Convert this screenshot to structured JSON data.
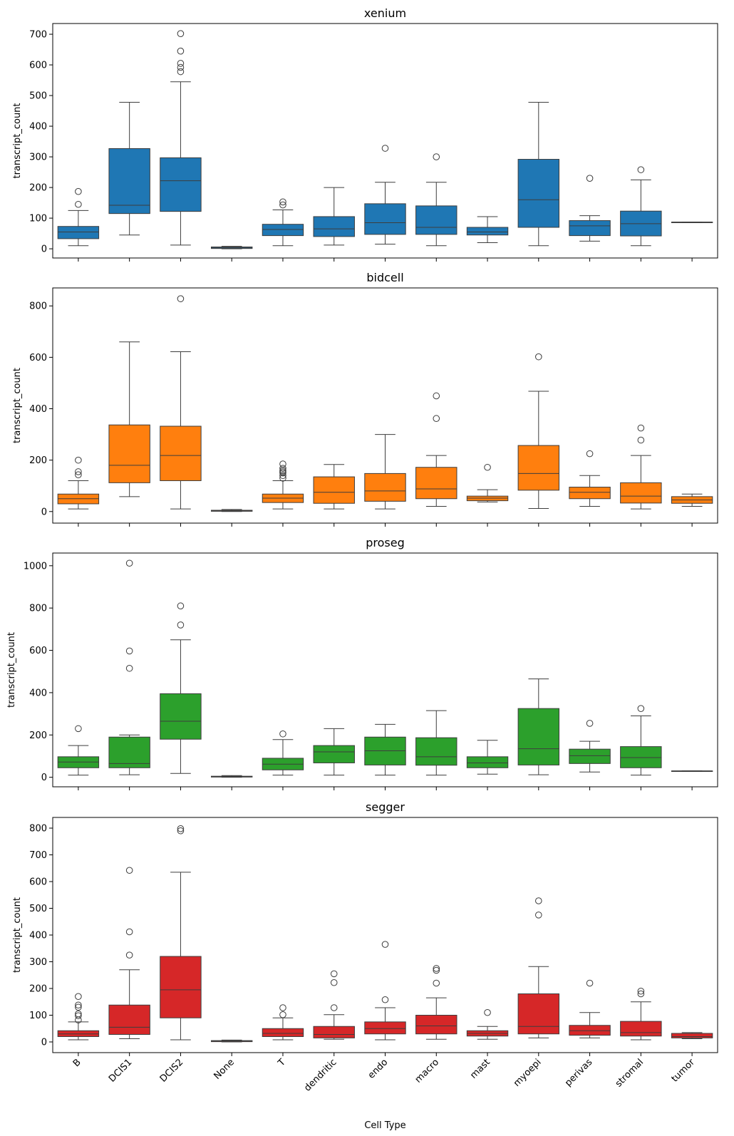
{
  "chart_data": {
    "type": "box",
    "xlabel": "Cell Type",
    "ylabel": "transcript_count",
    "categories": [
      "B",
      "DCIS1",
      "DCIS2",
      "None",
      "T",
      "dendritic",
      "endo",
      "macro",
      "mast",
      "myoepi",
      "perivas",
      "stromal",
      "tumor"
    ],
    "panels": [
      {
        "title": "xenium",
        "color": "#1f77b4",
        "ylim": [
          -30,
          735
        ],
        "yticks": [
          0,
          100,
          200,
          300,
          400,
          500,
          600,
          700
        ],
        "boxes": [
          {
            "min": 10,
            "q1": 33,
            "median": 55,
            "q3": 73,
            "max": 125,
            "outliers": [
              145,
              187
            ]
          },
          {
            "min": 45,
            "q1": 115,
            "median": 142,
            "q3": 327,
            "max": 478,
            "outliers": []
          },
          {
            "min": 12,
            "q1": 122,
            "median": 222,
            "q3": 297,
            "max": 545,
            "outliers": [
              578,
              592,
              605,
              645,
              702
            ]
          },
          {
            "min": 0,
            "q1": 1,
            "median": 3,
            "q3": 6,
            "max": 8,
            "outliers": []
          },
          {
            "min": 10,
            "q1": 43,
            "median": 63,
            "q3": 80,
            "max": 127,
            "outliers": [
              143,
              153
            ]
          },
          {
            "min": 12,
            "q1": 40,
            "median": 65,
            "q3": 105,
            "max": 200,
            "outliers": []
          },
          {
            "min": 15,
            "q1": 47,
            "median": 85,
            "q3": 147,
            "max": 217,
            "outliers": [
              328
            ]
          },
          {
            "min": 10,
            "q1": 47,
            "median": 70,
            "q3": 140,
            "max": 217,
            "outliers": [
              300
            ]
          },
          {
            "min": 20,
            "q1": 45,
            "median": 55,
            "q3": 70,
            "max": 105,
            "outliers": []
          },
          {
            "min": 10,
            "q1": 70,
            "median": 160,
            "q3": 292,
            "max": 478,
            "outliers": []
          },
          {
            "min": 25,
            "q1": 43,
            "median": 75,
            "q3": 92,
            "max": 108,
            "outliers": [
              230
            ]
          },
          {
            "min": 10,
            "q1": 42,
            "median": 82,
            "q3": 123,
            "max": 225,
            "outliers": [
              258
            ]
          },
          {
            "min": 87,
            "q1": 87,
            "median": 87,
            "q3": 87,
            "max": 87,
            "outliers": []
          }
        ]
      },
      {
        "title": "bidcell",
        "color": "#ff7f0e",
        "ylim": [
          -45,
          870
        ],
        "yticks": [
          0,
          200,
          400,
          600,
          800
        ],
        "boxes": [
          {
            "min": 10,
            "q1": 30,
            "median": 50,
            "q3": 68,
            "max": 120,
            "outliers": [
              143,
              155,
              200
            ]
          },
          {
            "min": 58,
            "q1": 112,
            "median": 180,
            "q3": 337,
            "max": 660,
            "outliers": []
          },
          {
            "min": 10,
            "q1": 120,
            "median": 218,
            "q3": 332,
            "max": 622,
            "outliers": [
              828
            ]
          },
          {
            "min": 0,
            "q1": 1,
            "median": 3,
            "q3": 5,
            "max": 8,
            "outliers": []
          },
          {
            "min": 10,
            "q1": 35,
            "median": 52,
            "q3": 68,
            "max": 120,
            "outliers": [
              130,
              140,
              150,
              155,
              160,
              168,
              185
            ]
          },
          {
            "min": 10,
            "q1": 32,
            "median": 75,
            "q3": 135,
            "max": 183,
            "outliers": []
          },
          {
            "min": 10,
            "q1": 40,
            "median": 80,
            "q3": 148,
            "max": 300,
            "outliers": []
          },
          {
            "min": 20,
            "q1": 50,
            "median": 88,
            "q3": 172,
            "max": 218,
            "outliers": [
              362,
              450
            ]
          },
          {
            "min": 37,
            "q1": 42,
            "median": 52,
            "q3": 60,
            "max": 85,
            "outliers": [
              172
            ]
          },
          {
            "min": 12,
            "q1": 83,
            "median": 148,
            "q3": 257,
            "max": 468,
            "outliers": [
              602
            ]
          },
          {
            "min": 20,
            "q1": 50,
            "median": 75,
            "q3": 95,
            "max": 140,
            "outliers": [
              225
            ]
          },
          {
            "min": 10,
            "q1": 33,
            "median": 60,
            "q3": 112,
            "max": 218,
            "outliers": [
              278,
              325
            ]
          },
          {
            "min": 20,
            "q1": 32,
            "median": 45,
            "q3": 58,
            "max": 68,
            "outliers": []
          }
        ]
      },
      {
        "title": "proseg",
        "color": "#2ca02c",
        "ylim": [
          -45,
          1060
        ],
        "yticks": [
          0,
          200,
          400,
          600,
          800,
          1000
        ],
        "boxes": [
          {
            "min": 10,
            "q1": 45,
            "median": 72,
            "q3": 97,
            "max": 150,
            "outliers": [
              230
            ]
          },
          {
            "min": 12,
            "q1": 45,
            "median": 65,
            "q3": 190,
            "max": 200,
            "outliers": [
              515,
              597,
              1012
            ]
          },
          {
            "min": 18,
            "q1": 180,
            "median": 265,
            "q3": 395,
            "max": 650,
            "outliers": [
              720,
              810
            ]
          },
          {
            "min": 0,
            "q1": 1,
            "median": 3,
            "q3": 5,
            "max": 8,
            "outliers": []
          },
          {
            "min": 10,
            "q1": 35,
            "median": 62,
            "q3": 90,
            "max": 178,
            "outliers": [
              205
            ]
          },
          {
            "min": 10,
            "q1": 68,
            "median": 120,
            "q3": 150,
            "max": 230,
            "outliers": []
          },
          {
            "min": 10,
            "q1": 58,
            "median": 125,
            "q3": 190,
            "max": 250,
            "outliers": []
          },
          {
            "min": 10,
            "q1": 57,
            "median": 97,
            "q3": 187,
            "max": 315,
            "outliers": []
          },
          {
            "min": 15,
            "q1": 45,
            "median": 68,
            "q3": 97,
            "max": 175,
            "outliers": []
          },
          {
            "min": 12,
            "q1": 58,
            "median": 135,
            "q3": 325,
            "max": 465,
            "outliers": []
          },
          {
            "min": 25,
            "q1": 65,
            "median": 102,
            "q3": 133,
            "max": 170,
            "outliers": [
              255
            ]
          },
          {
            "min": 10,
            "q1": 45,
            "median": 93,
            "q3": 145,
            "max": 290,
            "outliers": [
              325
            ]
          },
          {
            "min": 30,
            "q1": 30,
            "median": 30,
            "q3": 30,
            "max": 30,
            "outliers": []
          }
        ]
      },
      {
        "title": "segger",
        "color": "#d62728",
        "ylim": [
          -40,
          840
        ],
        "yticks": [
          0,
          100,
          200,
          300,
          400,
          500,
          600,
          700,
          800
        ],
        "boxes": [
          {
            "min": 8,
            "q1": 20,
            "median": 30,
            "q3": 42,
            "max": 75,
            "outliers": [
              82,
              98,
              105,
              130,
              138,
              170
            ]
          },
          {
            "min": 12,
            "q1": 28,
            "median": 55,
            "q3": 138,
            "max": 270,
            "outliers": [
              325,
              412,
              642
            ]
          },
          {
            "min": 8,
            "q1": 90,
            "median": 195,
            "q3": 320,
            "max": 635,
            "outliers": [
              790,
              798
            ]
          },
          {
            "min": 0,
            "q1": 1,
            "median": 3,
            "q3": 5,
            "max": 7,
            "outliers": []
          },
          {
            "min": 8,
            "q1": 20,
            "median": 32,
            "q3": 50,
            "max": 90,
            "outliers": [
              102,
              128
            ]
          },
          {
            "min": 10,
            "q1": 15,
            "median": 28,
            "q3": 58,
            "max": 102,
            "outliers": [
              128,
              222,
              255
            ]
          },
          {
            "min": 8,
            "q1": 30,
            "median": 50,
            "q3": 75,
            "max": 128,
            "outliers": [
              158,
              365
            ]
          },
          {
            "min": 10,
            "q1": 30,
            "median": 60,
            "q3": 100,
            "max": 165,
            "outliers": [
              220,
              268,
              275
            ]
          },
          {
            "min": 10,
            "q1": 22,
            "median": 32,
            "q3": 42,
            "max": 58,
            "outliers": [
              110
            ]
          },
          {
            "min": 15,
            "q1": 30,
            "median": 58,
            "q3": 180,
            "max": 282,
            "outliers": [
              475,
              528
            ]
          },
          {
            "min": 15,
            "q1": 25,
            "median": 42,
            "q3": 62,
            "max": 110,
            "outliers": [
              220
            ]
          },
          {
            "min": 8,
            "q1": 22,
            "median": 35,
            "q3": 77,
            "max": 150,
            "outliers": [
              180,
              190
            ]
          },
          {
            "min": 12,
            "q1": 15,
            "median": 20,
            "q3": 32,
            "max": 35,
            "outliers": []
          }
        ]
      }
    ]
  }
}
